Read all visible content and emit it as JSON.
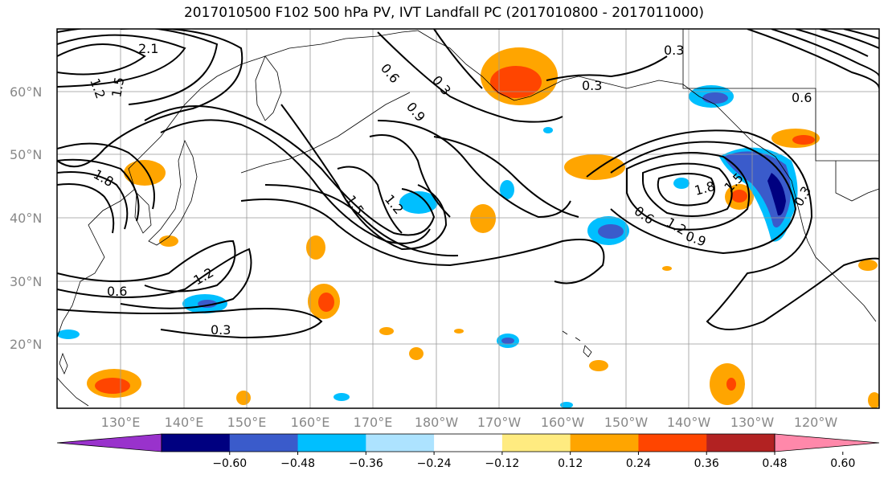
{
  "title": "2017010500 F102 500 hPa PV, IVT Landfall PC (2017010800 - 2017011000)",
  "lat_labels": [
    "60°N",
    "50°N",
    "40°N",
    "30°N",
    "20°N"
  ],
  "lon_labels": [
    "130°E",
    "140°E",
    "150°E",
    "160°E",
    "170°E",
    "180°W",
    "170°W",
    "160°W",
    "150°W",
    "140°W",
    "130°W",
    "120°W"
  ],
  "contour_labels": [
    "2.1",
    "1.2",
    "1.5",
    "1.8",
    "0.6",
    "0.3",
    "0.9",
    "1.5",
    "1.2",
    "0.3",
    "0.6",
    "1.2",
    "0.3",
    "1.8",
    "1.5",
    "0.6",
    "1.2",
    "0.9",
    "0.3",
    "0.6",
    "0.3"
  ],
  "colorbar": {
    "ticks": [
      "−0.60",
      "−0.48",
      "−0.36",
      "−0.24",
      "−0.12",
      "0.12",
      "0.24",
      "0.36",
      "0.48",
      "0.60"
    ],
    "colors": [
      "#9932CC",
      "#000080",
      "#3A5BCB",
      "#00BFFF",
      "#ADE3FF",
      "#FFFFFF",
      "#FFEB80",
      "#FFA500",
      "#FF4500",
      "#B22222",
      "#FF88AA"
    ]
  }
}
